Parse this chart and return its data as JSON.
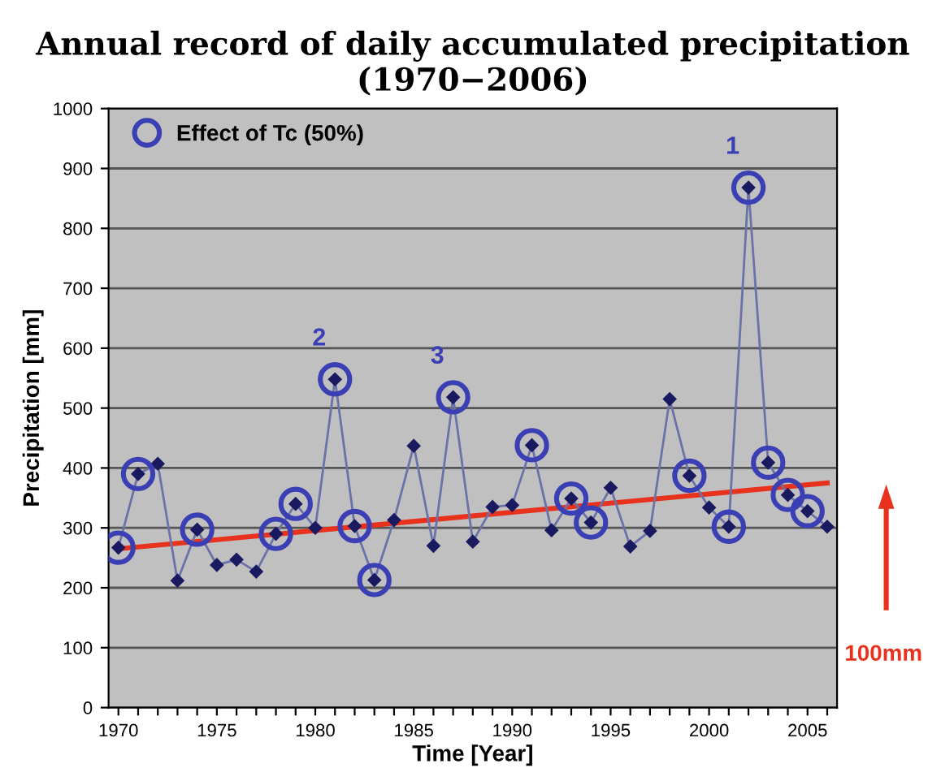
{
  "chart_data": {
    "type": "line",
    "title": "Annual record of daily accumulated precipitation\n(1970−2006)",
    "xlabel": "Time [Year]",
    "ylabel": "Precipitation [mm]",
    "x": [
      1970,
      1971,
      1972,
      1973,
      1974,
      1975,
      1976,
      1977,
      1978,
      1979,
      1980,
      1981,
      1982,
      1983,
      1984,
      1985,
      1986,
      1987,
      1988,
      1989,
      1990,
      1991,
      1992,
      1993,
      1994,
      1995,
      1996,
      1997,
      1998,
      1999,
      2000,
      2001,
      2002,
      2003,
      2004,
      2005,
      2006
    ],
    "series": [
      {
        "color": "#6a72a8",
        "marker": "diamond",
        "values": [
          267,
          390,
          407,
          212,
          297,
          238,
          247,
          227,
          290,
          340,
          300,
          548,
          303,
          213,
          313,
          437,
          270,
          518,
          277,
          335,
          338,
          438,
          296,
          349,
          309,
          367,
          269,
          295,
          515,
          387,
          334,
          302,
          868,
          409,
          355,
          328,
          302
        ]
      },
      {
        "type": "scatter",
        "name": "Effect of Tc (50%)",
        "color": "#3a40b4",
        "marker": "circle",
        "x": [
          1970,
          1971,
          1974,
          1978,
          1979,
          1981,
          1982,
          1983,
          1987,
          1991,
          1993,
          1994,
          1999,
          2001,
          2002,
          2003,
          2004,
          2005
        ],
        "values": [
          267,
          390,
          297,
          290,
          340,
          548,
          303,
          213,
          518,
          438,
          349,
          309,
          387,
          302,
          868,
          409,
          355,
          328
        ]
      },
      {
        "type": "line",
        "color": "#e8321e",
        "marker": "none",
        "x": [
          1970,
          2006
        ],
        "values": [
          265,
          375
        ]
      }
    ],
    "xlim": [
      1969.5,
      2006.5
    ],
    "xticks": [
      1970,
      {
        "value": 1971,
        "label": null
      },
      {
        "value": 1972,
        "label": null
      },
      {
        "value": 1973,
        "label": null
      },
      {
        "value": 1974,
        "label": null
      },
      1975,
      {
        "value": 1976,
        "label": null
      },
      {
        "value": 1977,
        "label": null
      },
      {
        "value": 1978,
        "label": null
      },
      {
        "value": 1979,
        "label": null
      },
      1980,
      {
        "value": 1981,
        "label": null
      },
      {
        "value": 1982,
        "label": null
      },
      {
        "value": 1983,
        "label": null
      },
      {
        "value": 1984,
        "label": null
      },
      1985,
      {
        "value": 1986,
        "label": null
      },
      {
        "value": 1987,
        "label": null
      },
      {
        "value": 1988,
        "label": null
      },
      {
        "value": 1989,
        "label": null
      },
      1990,
      {
        "value": 1991,
        "label": null
      },
      {
        "value": 1992,
        "label": null
      },
      {
        "value": 1993,
        "label": null
      },
      {
        "value": 1994,
        "label": null
      },
      1995,
      {
        "value": 1996,
        "label": null
      },
      {
        "value": 1997,
        "label": null
      },
      {
        "value": 1998,
        "label": null
      },
      {
        "value": 1999,
        "label": null
      },
      2000,
      {
        "value": 2001,
        "label": null
      },
      {
        "value": 2002,
        "label": null
      },
      {
        "value": 2003,
        "label": null
      },
      {
        "value": 2004,
        "label": null
      },
      2005,
      {
        "value": 2006,
        "label": null
      }
    ],
    "ylim": [
      0,
      1000
    ],
    "yticks": [
      0,
      100,
      200,
      300,
      400,
      500,
      600,
      700,
      800,
      900,
      1000
    ],
    "grid": "y",
    "legend": "top left",
    "annotations": [
      {
        "text": "1",
        "x": 2002,
        "y": 868
      },
      {
        "text": "2",
        "x": 1981,
        "y": 548
      },
      {
        "text": "3",
        "x": 1987,
        "y": 518
      },
      "100mm"
    ]
  }
}
